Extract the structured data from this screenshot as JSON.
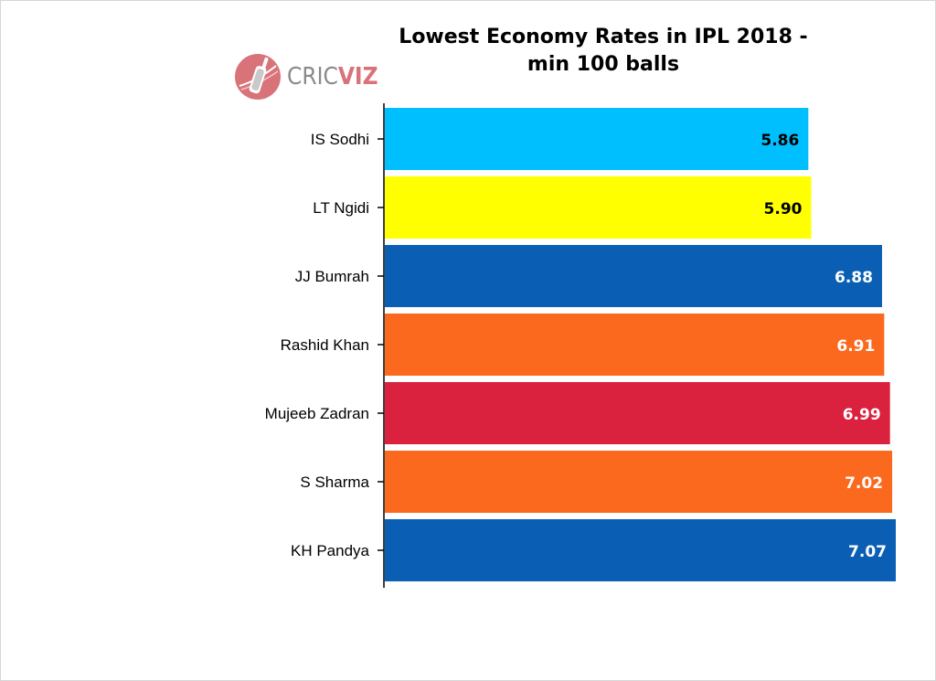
{
  "chart_data": {
    "type": "bar",
    "orientation": "horizontal",
    "title": [
      "Lowest Economy Rates in IPL 2018 -",
      "min 100 balls"
    ],
    "categories": [
      "IS Sodhi",
      "LT Ngidi",
      "JJ Bumrah",
      "Rashid Khan",
      "Mujeeb Zadran",
      "S Sharma",
      "KH Pandya"
    ],
    "values": [
      5.86,
      5.9,
      6.88,
      6.91,
      6.99,
      7.02,
      7.07
    ],
    "value_labels": [
      "5.86",
      "5.90",
      "6.88",
      "6.91",
      "6.99",
      "7.02",
      "7.07"
    ],
    "colors": [
      "#00bfff",
      "#ffff00",
      "#0a5fb4",
      "#fb691e",
      "#da213d",
      "#fb691e",
      "#0a5fb4"
    ],
    "label_colors": [
      "#000000",
      "#000000",
      "#ffffff",
      "#ffffff",
      "#ffffff",
      "#ffffff",
      "#ffffff"
    ],
    "xlim": [
      0,
      7.07
    ],
    "grid": false,
    "legend": "none"
  },
  "logo": {
    "part1": "CRIC",
    "part2": "VIZ"
  }
}
